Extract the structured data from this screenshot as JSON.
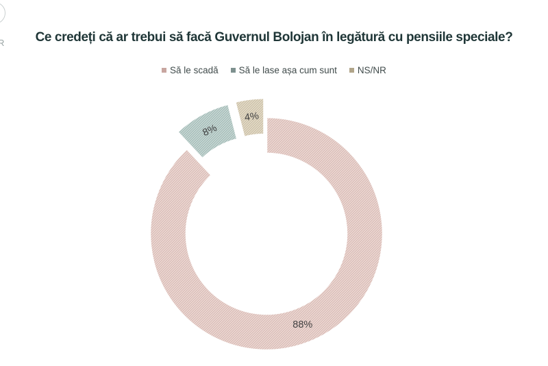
{
  "watermark": {
    "letter": "R"
  },
  "chart_data": {
    "type": "pie",
    "subtype": "donut",
    "title": "Ce credeți că ar trebui să facă Guvernul Bolojan în legătură cu pensiile speciale?",
    "legend_position": "top",
    "direction": "clockwise",
    "start_angle_deg": 0,
    "donut_hole_ratio": 0.69,
    "categories": [
      "Să le scadă",
      "Să le lase așa cum sunt",
      "NS/NR"
    ],
    "values": [
      88,
      8,
      4
    ],
    "value_labels": [
      "88%",
      "8%",
      "4%"
    ],
    "exploded": [
      false,
      true,
      true
    ],
    "label_rotations_deg": [
      0,
      -25,
      -8
    ],
    "pattern": "diagonal-hatch",
    "slice_fill_colors": [
      "#eedcd8",
      "#cedbd8",
      "#e6dece"
    ],
    "slice_hatch_colors": [
      "#d6b6af",
      "#9bb6b2",
      "#c7bb9f"
    ],
    "legend_marker_colors": [
      "#c8a6a0",
      "#7e918f",
      "#b1a58a"
    ],
    "label_text_color": "#414141",
    "title_color": "#1f3637",
    "background_color": "#ffffff"
  }
}
